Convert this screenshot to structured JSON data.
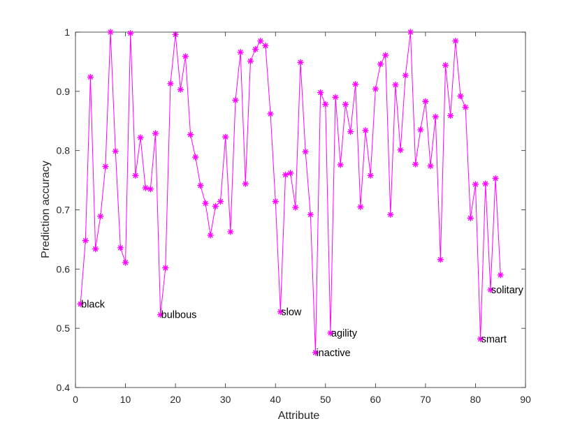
{
  "chart_data": {
    "type": "line",
    "xlabel": "Attribute",
    "ylabel": "Prediction accuracy",
    "xlim": [
      0,
      90
    ],
    "ylim": [
      0.4,
      1
    ],
    "xticks": [
      0,
      10,
      20,
      30,
      40,
      50,
      60,
      70,
      80,
      90
    ],
    "yticks": [
      0.4,
      0.5,
      0.6,
      0.7,
      0.8,
      0.9,
      1
    ],
    "grid": false,
    "marker": "asterisk",
    "color": "#ff00ff",
    "series": [
      {
        "x": [
          1,
          2,
          3,
          4,
          5,
          6,
          7,
          8,
          9,
          10,
          11,
          12,
          13,
          14,
          15,
          16,
          17,
          18,
          19,
          20,
          21,
          22,
          23,
          24,
          25,
          26,
          27,
          28,
          29,
          30,
          31,
          32,
          33,
          34,
          35,
          36,
          37,
          38,
          39,
          40,
          41,
          42,
          43,
          44,
          45,
          46,
          47,
          48,
          49,
          50,
          51,
          52,
          53,
          54,
          55,
          56,
          57,
          58,
          59,
          60,
          61,
          62,
          63,
          64,
          65,
          66,
          67,
          68,
          69,
          70,
          71,
          72,
          73,
          74,
          75,
          76,
          77,
          78,
          79,
          80,
          81,
          82,
          83,
          84,
          85
        ],
        "values": [
          0.541,
          0.648,
          0.924,
          0.634,
          0.689,
          0.773,
          1.0,
          0.799,
          0.636,
          0.611,
          0.998,
          0.758,
          0.822,
          0.737,
          0.735,
          0.829,
          0.523,
          0.602,
          0.913,
          0.996,
          0.903,
          0.959,
          0.827,
          0.789,
          0.741,
          0.711,
          0.657,
          0.706,
          0.714,
          0.823,
          0.663,
          0.885,
          0.966,
          0.744,
          0.951,
          0.971,
          0.985,
          0.977,
          0.862,
          0.714,
          0.528,
          0.759,
          0.762,
          0.704,
          0.949,
          0.798,
          0.692,
          0.459,
          0.898,
          0.878,
          0.492,
          0.89,
          0.776,
          0.878,
          0.832,
          0.912,
          0.705,
          0.834,
          0.758,
          0.904,
          0.946,
          0.961,
          0.692,
          0.911,
          0.801,
          0.927,
          1.0,
          0.777,
          0.835,
          0.883,
          0.774,
          0.857,
          0.616,
          0.944,
          0.859,
          0.985,
          0.892,
          0.873,
          0.686,
          0.743,
          0.482,
          0.744,
          0.565,
          0.753,
          0.59
        ]
      }
    ],
    "annotations": [
      {
        "x": 1,
        "y": 0.541,
        "text": "black"
      },
      {
        "x": 17,
        "y": 0.523,
        "text": "bulbous"
      },
      {
        "x": 41,
        "y": 0.528,
        "text": "slow"
      },
      {
        "x": 48,
        "y": 0.459,
        "text": "inactive"
      },
      {
        "x": 51,
        "y": 0.492,
        "text": "agility"
      },
      {
        "x": 81,
        "y": 0.482,
        "text": "smart"
      },
      {
        "x": 83,
        "y": 0.565,
        "text": "solitary"
      }
    ]
  }
}
